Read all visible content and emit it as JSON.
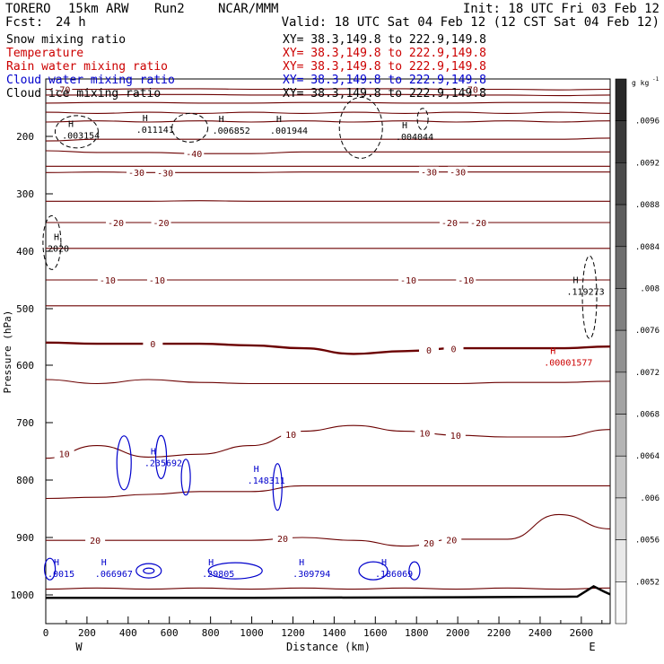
{
  "header": {
    "model": "TORERO",
    "resolution": "15km ARW",
    "run": "Run2",
    "org": "NCAR/MMM",
    "init": "Init: 18 UTC Fri 03 Feb 12",
    "fcst_label": "Fcst:",
    "fcst_value": "24 h",
    "valid": "Valid: 18 UTC Sat 04 Feb 12 (12 CST Sat 04 Feb 12)"
  },
  "legend": [
    {
      "name": "Snow mixing ratio",
      "color": "#000000",
      "xy": "XY=  38.3,149.8 to 222.9,149.8"
    },
    {
      "name": "Temperature",
      "color": "#cc0000",
      "xy": "XY=  38.3,149.8 to 222.9,149.8"
    },
    {
      "name": "Rain water mixing ratio",
      "color": "#cc0000",
      "xy": "XY=  38.3,149.8 to 222.9,149.8"
    },
    {
      "name": "Cloud water mixing ratio",
      "color": "#0000cc",
      "xy": "XY=  38.3,149.8 to 222.9,149.8"
    },
    {
      "name": "Cloud ice mixing ratio",
      "color": "#000000",
      "xy": "XY=  38.3,149.8 to 222.9,149.8"
    }
  ],
  "chart_data": {
    "type": "cross-section contour",
    "xlabel": "Distance (km)",
    "ylabel": "Pressure (hPa)",
    "xlim": [
      0,
      2740
    ],
    "ylim": [
      1050,
      100
    ],
    "xticks": [
      0,
      200,
      400,
      600,
      800,
      1000,
      1200,
      1400,
      1600,
      1800,
      2000,
      2200,
      2400,
      2600
    ],
    "yticks": [
      200,
      300,
      400,
      500,
      600,
      700,
      800,
      900,
      1000
    ],
    "left_end": "W",
    "right_end": "E",
    "temperature_contours": [
      {
        "level": -70,
        "y": [
          118,
          118,
          117,
          117,
          118,
          118,
          117,
          117,
          118,
          118,
          119,
          118
        ],
        "labels": [
          {
            "x": 80,
            "text": "-70"
          },
          {
            "x": 2060,
            "text": "-70"
          }
        ]
      },
      {
        "level": -65,
        "y": [
          128,
          128,
          127,
          127,
          128,
          128,
          127,
          127,
          128,
          128,
          129,
          128
        ],
        "labels": []
      },
      {
        "level": -60,
        "y": [
          142,
          141,
          141,
          142,
          142,
          141,
          141,
          142,
          142,
          141,
          141,
          142
        ],
        "labels": []
      },
      {
        "level": -55,
        "y": [
          158,
          160,
          158,
          160,
          158,
          160,
          158,
          160,
          158,
          160,
          158,
          160
        ],
        "labels": []
      },
      {
        "level": -50,
        "y": [
          175,
          173,
          175,
          173,
          175,
          173,
          175,
          173,
          175,
          173,
          175,
          173
        ],
        "labels": []
      },
      {
        "level": -45,
        "y": [
          208,
          205,
          205,
          205,
          205,
          205,
          205,
          205,
          205,
          205,
          205,
          203
        ],
        "labels": []
      },
      {
        "level": -40,
        "y": [
          225,
          228,
          228,
          230,
          230,
          227,
          227,
          227,
          227,
          227,
          227,
          227
        ],
        "labels": [
          {
            "x": 720,
            "text": "-40"
          }
        ]
      },
      {
        "level": -35,
        "y": [
          252,
          252,
          252,
          252,
          252,
          252,
          252,
          252,
          252,
          252,
          252,
          252
        ],
        "labels": []
      },
      {
        "level": -30,
        "y": [
          263,
          262,
          263,
          263,
          263,
          262,
          262,
          262,
          262,
          262,
          262,
          262
        ],
        "labels": [
          {
            "x": 440,
            "text": "-30"
          },
          {
            "x": 580,
            "text": "-30"
          },
          {
            "x": 1860,
            "text": "-30"
          },
          {
            "x": 2000,
            "text": "-30"
          }
        ]
      },
      {
        "level": -25,
        "y": [
          313,
          313,
          313,
          312,
          313,
          313,
          313,
          313,
          313,
          313,
          313,
          313
        ],
        "labels": []
      },
      {
        "level": -20,
        "y": [
          350,
          350,
          350,
          350,
          350,
          350,
          350,
          350,
          350,
          350,
          350,
          350
        ],
        "labels": [
          {
            "x": 340,
            "text": "-20"
          },
          {
            "x": 560,
            "text": "-20"
          },
          {
            "x": 1960,
            "text": "-20"
          },
          {
            "x": 2100,
            "text": "-20"
          }
        ]
      },
      {
        "level": -15,
        "y": [
          395,
          395,
          395,
          395,
          395,
          395,
          395,
          395,
          395,
          395,
          395,
          395
        ],
        "labels": []
      },
      {
        "level": -10,
        "y": [
          450,
          450,
          450,
          450,
          450,
          450,
          450,
          450,
          450,
          450,
          450,
          450
        ],
        "labels": [
          {
            "x": 300,
            "text": "-10"
          },
          {
            "x": 540,
            "text": "-10"
          },
          {
            "x": 1760,
            "text": "-10"
          },
          {
            "x": 2040,
            "text": "-10"
          }
        ]
      },
      {
        "level": -5,
        "y": [
          495,
          495,
          495,
          495,
          495,
          495,
          495,
          495,
          495,
          495,
          495,
          495
        ],
        "labels": []
      },
      {
        "level": 0,
        "y": [
          560,
          562,
          562,
          562,
          565,
          570,
          580,
          575,
          570,
          570,
          570,
          567
        ],
        "labels": [
          {
            "x": 520,
            "text": "0"
          },
          {
            "x": 1860,
            "text": "0"
          },
          {
            "x": 1980,
            "text": "0"
          }
        ],
        "bold": true
      },
      {
        "level": 5,
        "y": [
          625,
          632,
          625,
          630,
          632,
          632,
          632,
          632,
          632,
          630,
          630,
          628
        ],
        "labels": []
      },
      {
        "level": 10,
        "y": [
          762,
          740,
          760,
          755,
          740,
          715,
          705,
          715,
          722,
          725,
          725,
          712
        ],
        "labels": [
          {
            "x": 90,
            "text": "10"
          },
          {
            "x": 1190,
            "text": "10"
          },
          {
            "x": 1840,
            "text": "10"
          },
          {
            "x": 1990,
            "text": "10"
          }
        ]
      },
      {
        "level": 15,
        "y": [
          832,
          830,
          825,
          820,
          820,
          810,
          810,
          810,
          810,
          810,
          810,
          810
        ],
        "labels": []
      },
      {
        "level": 20,
        "y": [
          905,
          905,
          905,
          905,
          905,
          900,
          905,
          915,
          903,
          903,
          860,
          885
        ],
        "labels": [
          {
            "x": 240,
            "text": "20"
          },
          {
            "x": 1150,
            "text": "20"
          },
          {
            "x": 1860,
            "text": "20"
          },
          {
            "x": 1970,
            "text": "20"
          }
        ]
      },
      {
        "level": 25,
        "y": [
          990,
          988,
          990,
          988,
          990,
          988,
          990,
          988,
          990,
          988,
          990,
          988
        ],
        "labels": []
      }
    ],
    "snow_H": [
      {
        "x": 70,
        "p": 193,
        "label": ".003154"
      },
      {
        "x": 430,
        "p": 183,
        "label": ".011141"
      },
      {
        "x": 800,
        "p": 184,
        "label": ".006852"
      },
      {
        "x": 1080,
        "p": 184,
        "label": ".001944"
      },
      {
        "x": 1690,
        "p": 195,
        "label": ".004044"
      }
    ],
    "temp_H": [
      {
        "x": 2410,
        "p": 590,
        "label": ".00001577"
      }
    ],
    "cloud_water_H": [
      {
        "x": 0,
        "p": 958,
        "label": ".0015"
      },
      {
        "x": 230,
        "p": 958,
        "label": ".066967"
      },
      {
        "x": 750,
        "p": 958,
        "label": ".29805"
      },
      {
        "x": 1190,
        "p": 958,
        "label": ".309794"
      },
      {
        "x": 1590,
        "p": 958,
        "label": ".186069"
      },
      {
        "x": 470,
        "p": 765,
        "label": ".235692"
      },
      {
        "x": 970,
        "p": 795,
        "label": ".148311"
      }
    ],
    "ice_H": [
      {
        "x": 2520,
        "p": 465,
        "label": ".119273"
      },
      {
        "x": 0,
        "p": 390,
        "label": "2020"
      }
    ],
    "colorbar": {
      "unit": "g kg",
      "unit_exp": "-1",
      "ticks": [
        ".0096",
        ".0092",
        ".0088",
        ".0084",
        ".008",
        ".0076",
        ".0072",
        ".0068",
        ".0064",
        ".006",
        ".0056",
        ".0052"
      ],
      "bands": 13
    }
  }
}
